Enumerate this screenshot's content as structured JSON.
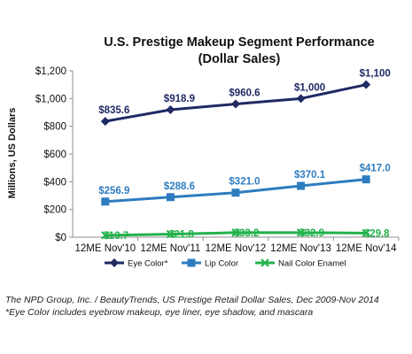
{
  "chart_data": {
    "type": "line",
    "title": "U.S. Prestige Makeup Segment Performance",
    "subtitle": "(Dollar Sales)",
    "ylabel": "Millions, US Dollars",
    "xlabel": "",
    "categories": [
      "12ME Nov'10",
      "12ME Nov'11",
      "12ME Nov'12",
      "12ME Nov'13",
      "12ME Nov'14"
    ],
    "ylim": [
      0,
      1200
    ],
    "yticks": [
      "$0",
      "$200",
      "$400",
      "$600",
      "$800",
      "$1,000",
      "$1,200"
    ],
    "legend_position": "bottom",
    "grid": false,
    "series": [
      {
        "name": "Eye Color*",
        "color": "#1f2a63",
        "marker": "diamond",
        "values": [
          835.6,
          918.9,
          960.6,
          1000,
          1100
        ],
        "labels": [
          "$835.6",
          "$918.9",
          "$960.6",
          "$1,000",
          "$1,100"
        ]
      },
      {
        "name": "Lip Color",
        "color": "#2e7cc0",
        "marker": "square",
        "values": [
          256.9,
          288.6,
          321.0,
          370.1,
          417.0
        ],
        "labels": [
          "$256.9",
          "$288.6",
          "$321.0",
          "$370.1",
          "$417.0"
        ]
      },
      {
        "name": "Nail Color Enamel",
        "color": "#22b14c",
        "marker": "x",
        "values": [
          13.7,
          21.8,
          33.2,
          32.9,
          29.8
        ],
        "labels": [
          "$13.7",
          "$21.8",
          "$33.2",
          "$32.9",
          "$29.8"
        ]
      }
    ]
  },
  "footer": {
    "source": "The NPD Group, Inc. / BeautyTrends, US Prestige Retail Dollar Sales, Dec 2009-Nov 2014",
    "note": "*Eye Color includes eyebrow makeup, eye liner, eye shadow, and mascara"
  }
}
